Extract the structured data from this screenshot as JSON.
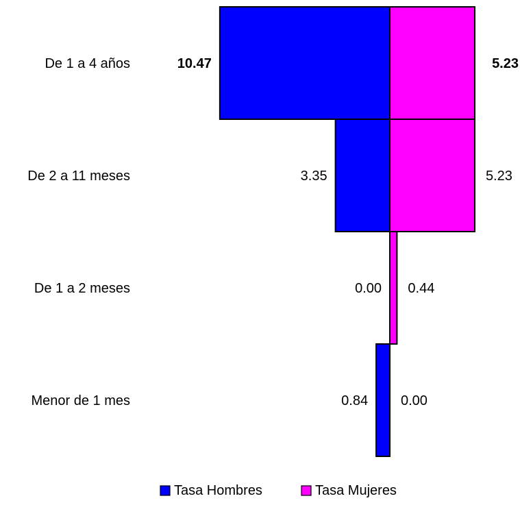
{
  "chart_data": {
    "type": "bar",
    "orientation": "horizontal-pyramid",
    "categories": [
      "De 1 a 4 años",
      "De 2 a 11 meses",
      "De 1 a 2 meses",
      "Menor de 1 mes"
    ],
    "series": [
      {
        "name": "Tasa Hombres",
        "values": [
          10.47,
          3.35,
          0.0,
          0.84
        ],
        "labels": [
          "10.47",
          "3.35",
          "0.00",
          "0.84"
        ],
        "color": "#0000FF"
      },
      {
        "name": "Tasa Mujeres",
        "values": [
          5.23,
          5.23,
          0.44,
          0.0
        ],
        "labels": [
          "5.23",
          "5.23",
          "0.44",
          "0.00"
        ],
        "color": "#FF00FF"
      }
    ],
    "bold_categories": [
      0
    ],
    "legend": {
      "position": "bottom"
    },
    "grid": false
  }
}
